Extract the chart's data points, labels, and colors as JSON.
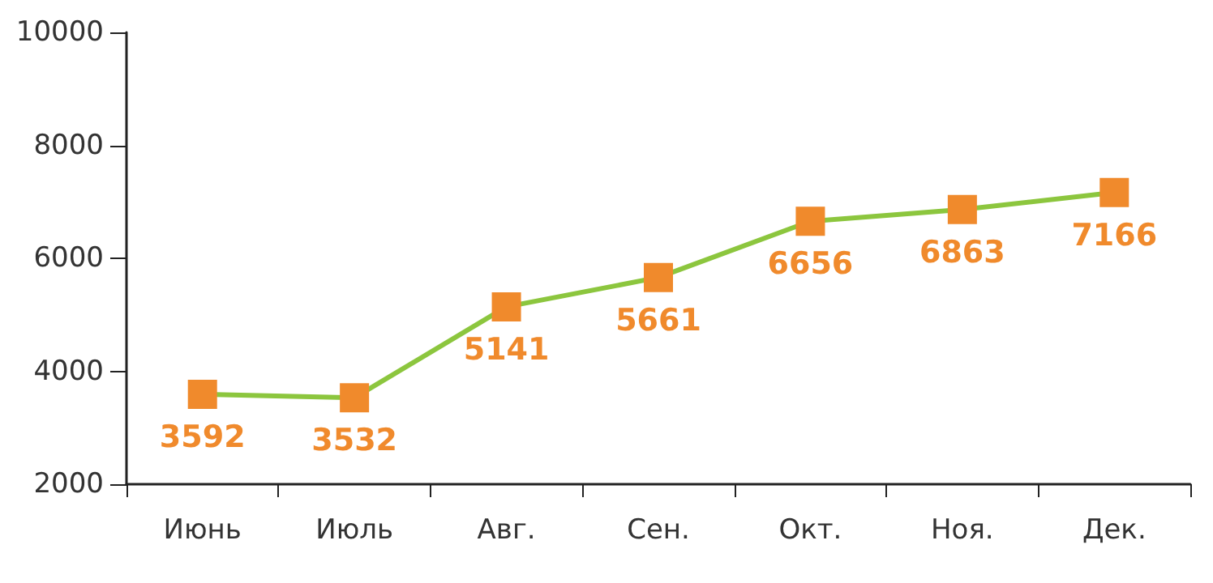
{
  "chart_data": {
    "type": "line",
    "categories": [
      "Июнь",
      "Июль",
      "Авг.",
      "Сен.",
      "Окт.",
      "Ноя.",
      "Дек."
    ],
    "series": [
      {
        "color": "#8cc63e",
        "colors": [
          "#f08a2c",
          "#f08a2c",
          "#f08a2c",
          "#f08a2c",
          "#f08a2c",
          "#f08a2c",
          "#f08a2c"
        ],
        "values": [
          3592,
          3532,
          5141,
          5661,
          6656,
          6863,
          7166
        ]
      }
    ],
    "marker": "square",
    "data_labels": true,
    "ylim": [
      2000,
      10000
    ],
    "yticks": [
      2000,
      4000,
      6000,
      8000,
      10000
    ],
    "grid": false
  }
}
